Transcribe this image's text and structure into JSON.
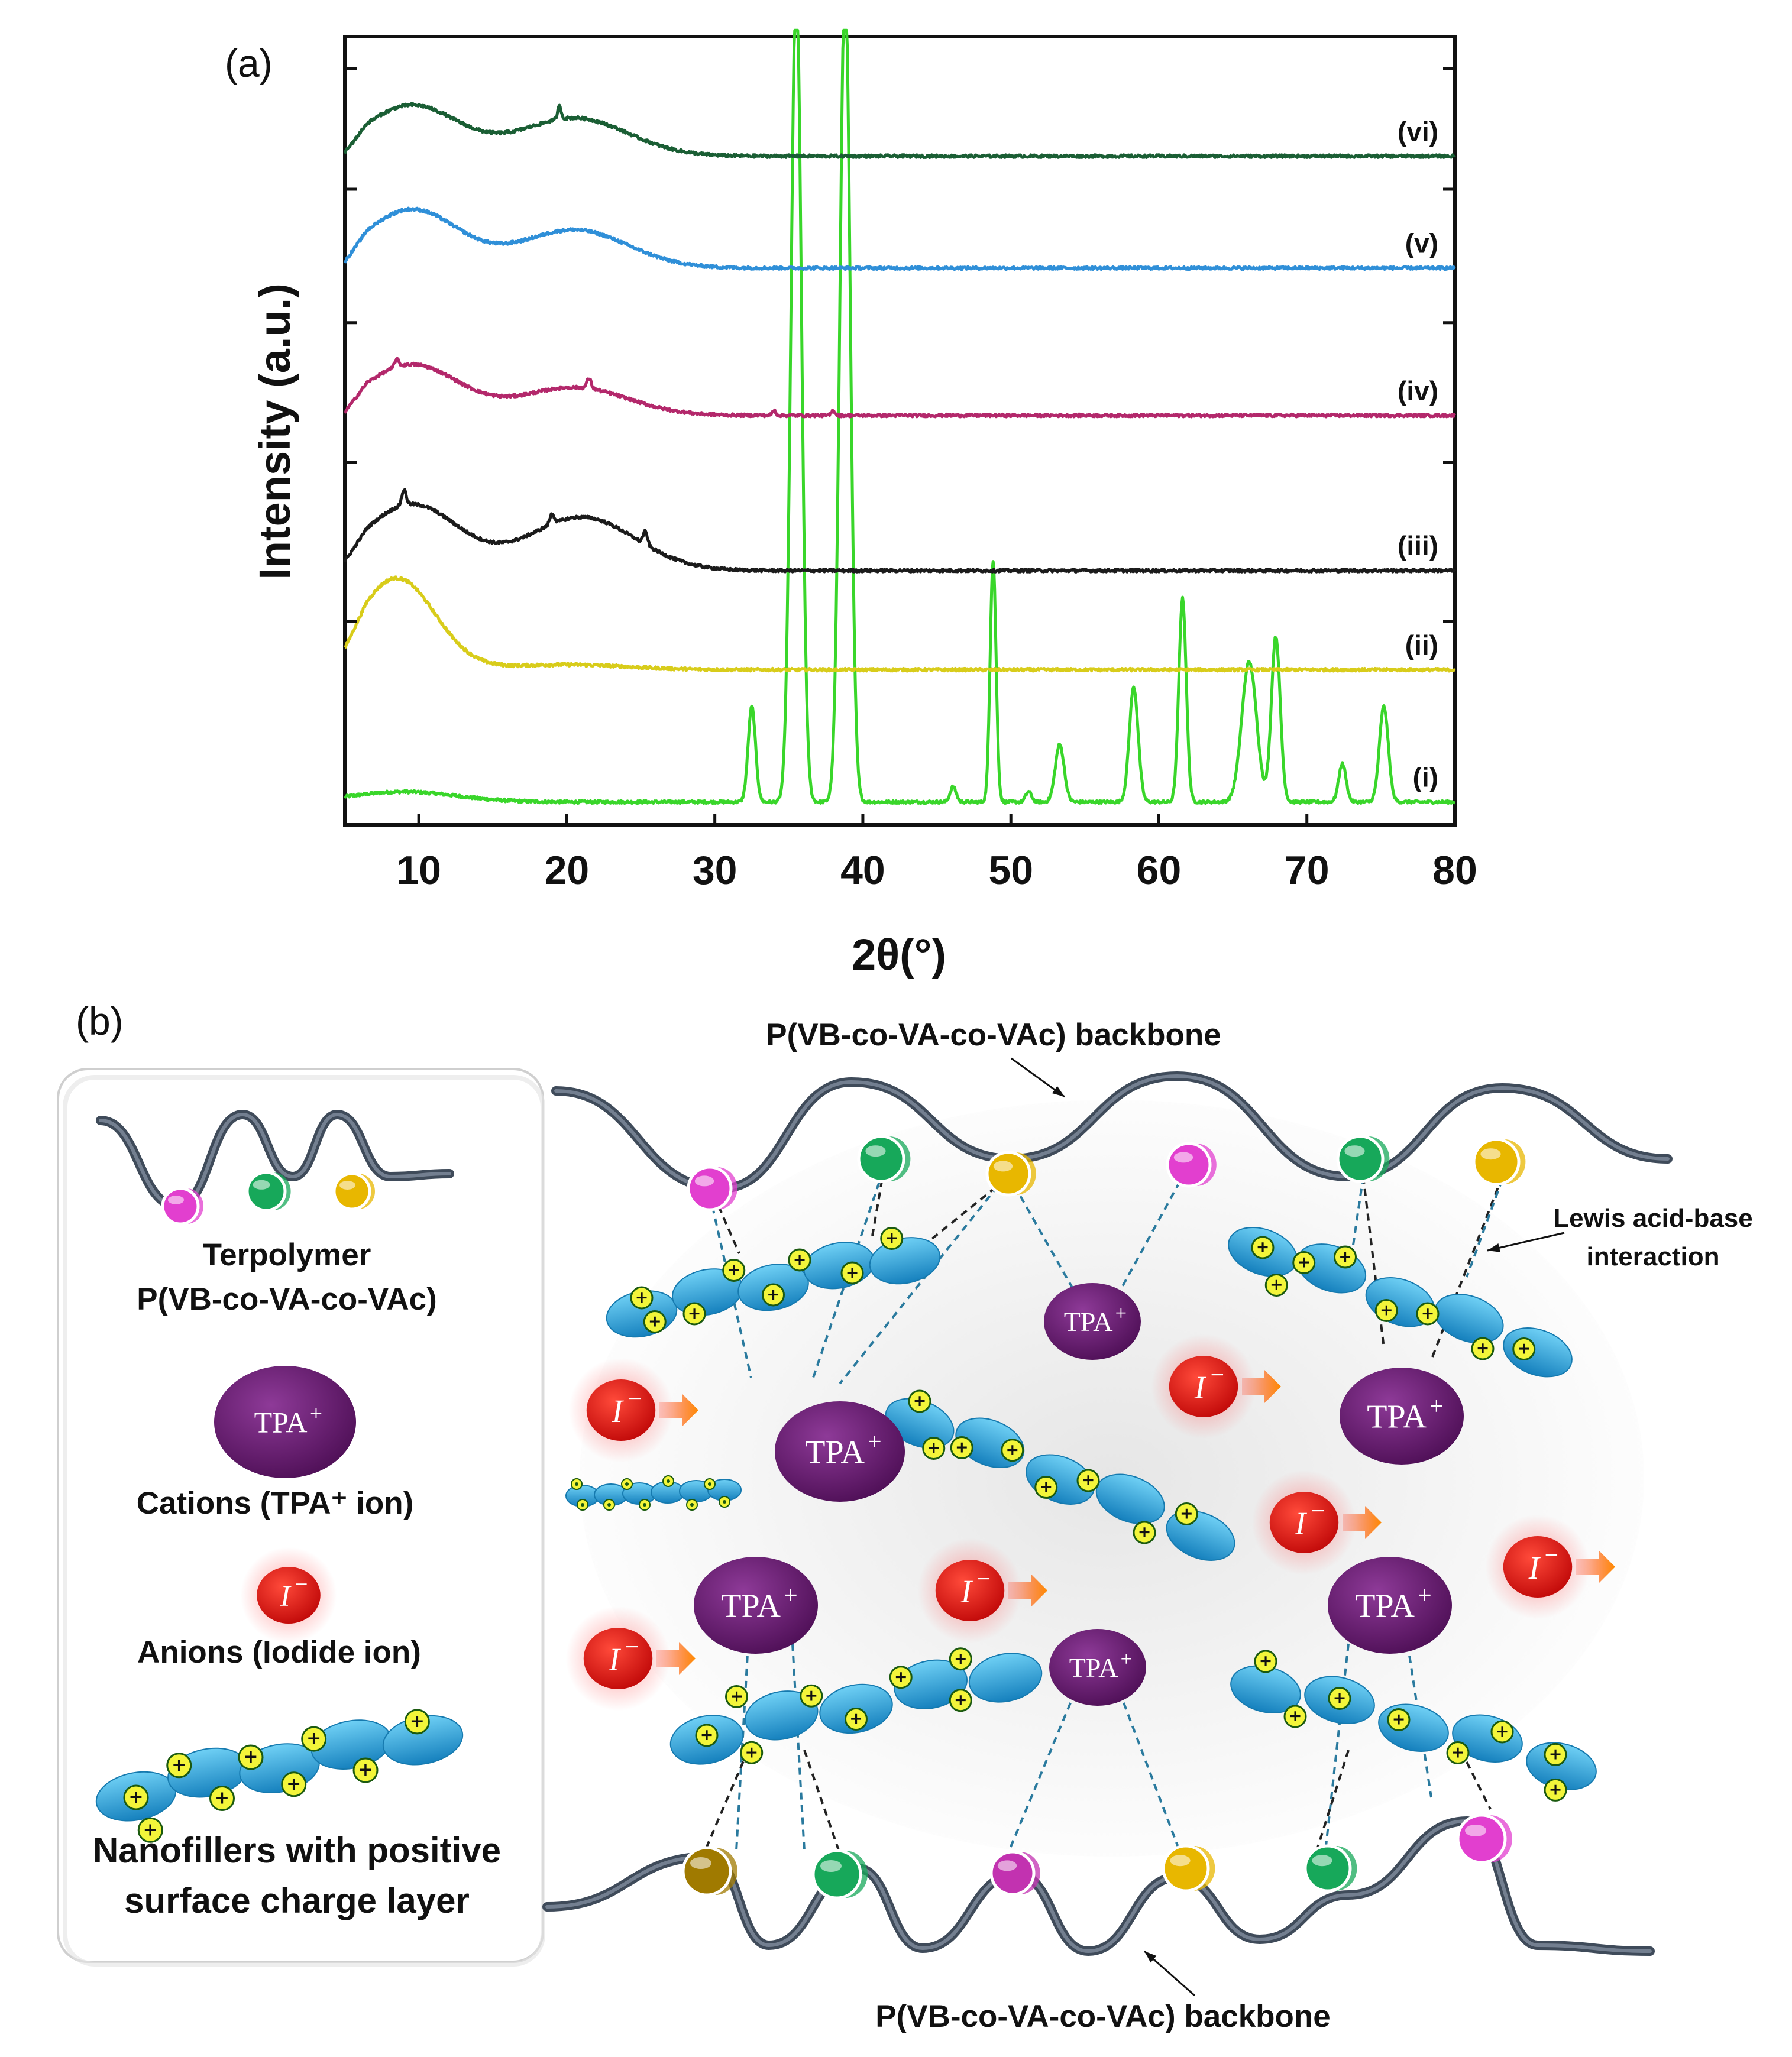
{
  "panel_a_label": "(a)",
  "panel_b_label": "(b)",
  "colors": {
    "i": "#39d62a",
    "ii": "#d8cc1a",
    "iii": "#1b1b1b",
    "iv": "#b3286b",
    "v": "#2f8fd8",
    "vi": "#1a5e34",
    "magenta_unit": "#e23fcf",
    "green_unit": "#17a85a",
    "yellow_unit": "#e8b700",
    "tpa": "#6e1a78",
    "iodide": "#e01010",
    "nanofiller": "#2aa6dd"
  },
  "chart_data": {
    "type": "line",
    "title": "",
    "xlabel": "2θ(°)",
    "ylabel": "Intensity (a.u.)",
    "xlim": [
      5,
      80
    ],
    "ylim": [
      0,
      6.2
    ],
    "x_ticks": [
      "10",
      "20",
      "30",
      "40",
      "50",
      "60",
      "70",
      "80"
    ],
    "grid": false,
    "stacked_offset": true,
    "series": [
      {
        "name": "(i)",
        "color_key": "i",
        "offset": 0.18,
        "humps": [
          [
            9,
            0.08,
            3.5
          ]
        ],
        "peaks": [
          [
            32.5,
            0.75,
            0.25
          ],
          [
            35.5,
            6.5,
            0.35
          ],
          [
            38.8,
            6.5,
            0.35
          ],
          [
            46.1,
            0.12,
            0.2
          ],
          [
            48.8,
            1.9,
            0.2
          ],
          [
            51.2,
            0.08,
            0.2
          ],
          [
            53.3,
            0.45,
            0.3
          ],
          [
            58.3,
            0.9,
            0.3
          ],
          [
            61.6,
            1.6,
            0.25
          ],
          [
            66.1,
            1.1,
            0.5
          ],
          [
            67.9,
            1.3,
            0.3
          ],
          [
            72.4,
            0.3,
            0.25
          ],
          [
            75.2,
            0.75,
            0.3
          ]
        ]
      },
      {
        "name": "(ii)",
        "color_key": "ii",
        "offset": 1.22,
        "humps": [
          [
            8.5,
            0.72,
            2.6
          ],
          [
            20,
            0.04,
            4
          ]
        ],
        "peaks": []
      },
      {
        "name": "(iii)",
        "color_key": "iii",
        "offset": 2.0,
        "humps": [
          [
            9.5,
            0.52,
            3.2
          ],
          [
            21,
            0.42,
            3.6
          ]
        ],
        "peaks": [
          [
            9,
            0.12,
            0.15
          ],
          [
            19,
            0.08,
            0.15
          ],
          [
            25.3,
            0.1,
            0.15
          ]
        ]
      },
      {
        "name": "(iv)",
        "color_key": "iv",
        "offset": 3.22,
        "humps": [
          [
            9.5,
            0.4,
            3.2
          ],
          [
            20.5,
            0.22,
            3.6
          ]
        ],
        "peaks": [
          [
            8.5,
            0.06,
            0.15
          ],
          [
            21.5,
            0.08,
            0.15
          ],
          [
            34,
            0.04,
            0.12
          ],
          [
            38,
            0.04,
            0.12
          ]
        ]
      },
      {
        "name": "(v)",
        "color_key": "v",
        "offset": 4.38,
        "humps": [
          [
            9.5,
            0.46,
            3.2
          ],
          [
            20.5,
            0.3,
            3.6
          ]
        ],
        "peaks": []
      },
      {
        "name": "(vi)",
        "color_key": "vi",
        "offset": 5.26,
        "humps": [
          [
            9.5,
            0.4,
            3.2
          ],
          [
            20.5,
            0.3,
            3.6
          ]
        ],
        "peaks": [
          [
            19.5,
            0.1,
            0.12
          ]
        ]
      }
    ]
  },
  "diagram": {
    "top_backbone_label": "P(VB-co-VA-co-VAc) backbone",
    "bottom_backbone_label": "P(VB-co-VA-co-VAc) backbone",
    "lewis_label_line1": "Lewis acid-base",
    "lewis_label_line2": "interaction",
    "tpa_text": "TPA",
    "tpa_sup": "+",
    "iodide_text": "I",
    "iodide_sup": "−",
    "plus_sign": "+",
    "legend": {
      "terpolymer_line1": "Terpolymer",
      "terpolymer_line2": "P(VB-co-VA-co-VAc)",
      "cations": "Cations (TPA⁺ ion)",
      "anions": "Anions (Iodide ion)",
      "nanofillers_line1": "Nanofillers with positive",
      "nanofillers_line2": "surface charge layer"
    }
  }
}
